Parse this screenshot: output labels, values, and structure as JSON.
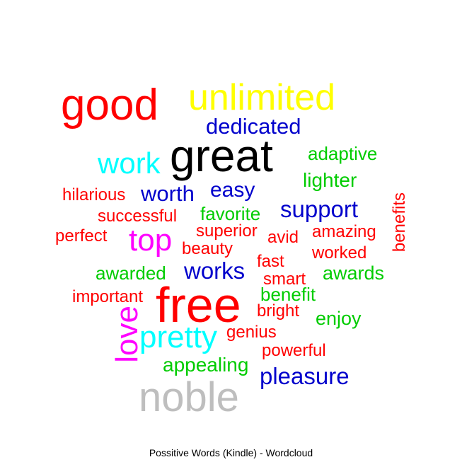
{
  "title": "Possitive Words (Kindle) - Wordcloud",
  "chart_data": {
    "type": "wordcloud",
    "title": "Possitive Words (Kindle) - Wordcloud",
    "words": [
      {
        "text": "good",
        "weight": 5,
        "color": "#ff0000"
      },
      {
        "text": "unlimited",
        "weight": 4,
        "color": "#ffff00"
      },
      {
        "text": "dedicated",
        "weight": 2,
        "color": "#0000cc"
      },
      {
        "text": "great",
        "weight": 5,
        "color": "#000000"
      },
      {
        "text": "work",
        "weight": 3,
        "color": "#00ffff"
      },
      {
        "text": "adaptive",
        "weight": 2,
        "color": "#00cc00"
      },
      {
        "text": "lighter",
        "weight": 2,
        "color": "#00cc00"
      },
      {
        "text": "easy",
        "weight": 2,
        "color": "#0000cc"
      },
      {
        "text": "worth",
        "weight": 2,
        "color": "#0000cc"
      },
      {
        "text": "hilarious",
        "weight": 1,
        "color": "#ff0000"
      },
      {
        "text": "benefits",
        "weight": 1,
        "color": "#ff0000"
      },
      {
        "text": "support",
        "weight": 2,
        "color": "#0000cc"
      },
      {
        "text": "successful",
        "weight": 1,
        "color": "#ff0000"
      },
      {
        "text": "favorite",
        "weight": 1,
        "color": "#00cc00"
      },
      {
        "text": "perfect",
        "weight": 1,
        "color": "#ff0000"
      },
      {
        "text": "top",
        "weight": 3,
        "color": "#ff00ff"
      },
      {
        "text": "superior",
        "weight": 1,
        "color": "#ff0000"
      },
      {
        "text": "avid",
        "weight": 1,
        "color": "#ff0000"
      },
      {
        "text": "amazing",
        "weight": 1,
        "color": "#ff0000"
      },
      {
        "text": "beauty",
        "weight": 1,
        "color": "#ff0000"
      },
      {
        "text": "worked",
        "weight": 1,
        "color": "#ff0000"
      },
      {
        "text": "fast",
        "weight": 1,
        "color": "#ff0000"
      },
      {
        "text": "awarded",
        "weight": 1,
        "color": "#00cc00"
      },
      {
        "text": "works",
        "weight": 2,
        "color": "#0000cc"
      },
      {
        "text": "smart",
        "weight": 1,
        "color": "#ff0000"
      },
      {
        "text": "awards",
        "weight": 1,
        "color": "#00cc00"
      },
      {
        "text": "important",
        "weight": 1,
        "color": "#ff0000"
      },
      {
        "text": "free",
        "weight": 5,
        "color": "#ff0000"
      },
      {
        "text": "benefit",
        "weight": 1,
        "color": "#00cc00"
      },
      {
        "text": "bright",
        "weight": 1,
        "color": "#ff0000"
      },
      {
        "text": "enjoy",
        "weight": 1,
        "color": "#00cc00"
      },
      {
        "text": "love",
        "weight": 3,
        "color": "#ff00ff"
      },
      {
        "text": "pretty",
        "weight": 3,
        "color": "#00ffff"
      },
      {
        "text": "genius",
        "weight": 1,
        "color": "#ff0000"
      },
      {
        "text": "powerful",
        "weight": 1,
        "color": "#ff0000"
      },
      {
        "text": "appealing",
        "weight": 1,
        "color": "#00cc00"
      },
      {
        "text": "pleasure",
        "weight": 2,
        "color": "#0000cc"
      },
      {
        "text": "noble",
        "weight": 4,
        "color": "#bebebe"
      }
    ]
  }
}
